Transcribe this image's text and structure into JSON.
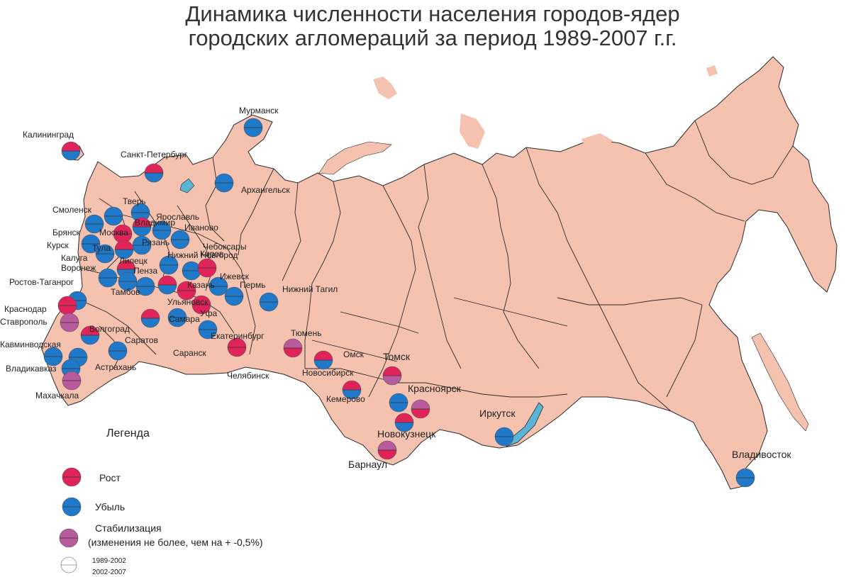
{
  "title": {
    "line1": "Динамика численности населения городов-ядер",
    "line2": "городских агломераций за период 1989-2007 г.г."
  },
  "colors": {
    "land": "#f5c2b0",
    "border": "#2a2a2a",
    "growth": "#e0245a",
    "decline": "#1f78c8",
    "stable": "#b85a9c",
    "water": "#5ab4d6"
  },
  "legend": {
    "title": "Легенда",
    "items": [
      {
        "label": "Рост",
        "top": "growth",
        "bottom": "growth"
      },
      {
        "label": "Убыль",
        "top": "decline",
        "bottom": "decline"
      },
      {
        "label": "Стабилизация",
        "label2": "(изменения не более, чем на + -0,5%)",
        "top": "stable",
        "bottom": "stable"
      }
    ],
    "period_top": "1989-2002",
    "period_bottom": "2002-2007"
  },
  "cities": [
    {
      "name": "Мурманск",
      "top": "decline",
      "bottom": "decline"
    },
    {
      "name": "Калининград",
      "top": "growth",
      "bottom": "decline"
    },
    {
      "name": "Санкт-Петербург",
      "top": "growth",
      "bottom": "decline"
    },
    {
      "name": "Архангельск",
      "top": "decline",
      "bottom": "decline"
    },
    {
      "name": "Смоленск",
      "top": "decline",
      "bottom": "decline"
    },
    {
      "name": "Тверь",
      "top": "decline",
      "bottom": "decline"
    },
    {
      "name": "Ярославль",
      "top": "decline",
      "bottom": "decline"
    },
    {
      "name": "Владимир",
      "top": "growth",
      "bottom": "decline"
    },
    {
      "name": "Иваново",
      "top": "decline",
      "bottom": "decline"
    },
    {
      "name": "Брянск",
      "top": "decline",
      "bottom": "decline"
    },
    {
      "name": "Москва",
      "top": "growth",
      "bottom": "growth"
    },
    {
      "name": "Рязань",
      "top": "decline",
      "bottom": "decline"
    },
    {
      "name": "Курск",
      "top": "decline",
      "bottom": "decline"
    },
    {
      "name": "Тула",
      "top": "decline",
      "bottom": "decline"
    },
    {
      "name": "Калуга",
      "top": "growth",
      "bottom": "decline"
    },
    {
      "name": "Чебоксары",
      "top": "decline",
      "bottom": "decline"
    },
    {
      "name": "Киров",
      "top": "growth",
      "bottom": "growth"
    },
    {
      "name": "Нижний Новгород",
      "top": "decline",
      "bottom": "decline"
    },
    {
      "name": "Воронеж",
      "top": "decline",
      "bottom": "decline"
    },
    {
      "name": "Липецк",
      "top": "growth",
      "bottom": "decline"
    },
    {
      "name": "Пенза",
      "top": "decline",
      "bottom": "decline"
    },
    {
      "name": "Ижевск",
      "top": "decline",
      "bottom": "decline"
    },
    {
      "name": "Ростов-Таганрог",
      "top": "decline",
      "bottom": "decline"
    },
    {
      "name": "Тамбов",
      "top": "decline",
      "bottom": "decline"
    },
    {
      "name": "Казань",
      "top": "growth",
      "bottom": "growth"
    },
    {
      "name": "Пермь",
      "top": "decline",
      "bottom": "decline"
    },
    {
      "name": "Нижний Тагил",
      "top": "decline",
      "bottom": "decline"
    },
    {
      "name": "Ульяновск",
      "top": "growth",
      "bottom": "decline"
    },
    {
      "name": "Уфа",
      "top": "growth",
      "bottom": "growth"
    },
    {
      "name": "Краснодар",
      "top": "growth",
      "bottom": "growth"
    },
    {
      "name": "Ставрополь",
      "top": "stable",
      "bottom": "stable"
    },
    {
      "name": "Волгоград",
      "top": "growth",
      "bottom": "decline"
    },
    {
      "name": "Самара",
      "top": "decline",
      "bottom": "decline"
    },
    {
      "name": "Екатеринбург",
      "top": "decline",
      "bottom": "decline"
    },
    {
      "name": "Тюмень",
      "top": "growth",
      "bottom": "growth"
    },
    {
      "name": "Кавминводская",
      "top": "stable",
      "bottom": "growth"
    },
    {
      "name": "Саратов",
      "top": "decline",
      "bottom": "decline"
    },
    {
      "name": "Саранск",
      "top": "decline",
      "bottom": "decline"
    },
    {
      "name": "Челябинск",
      "top": "growth",
      "bottom": "decline"
    },
    {
      "name": "Омск",
      "top": "decline",
      "bottom": "decline"
    },
    {
      "name": "Томск",
      "top": "growth",
      "bottom": "decline"
    },
    {
      "name": "Владикавказ",
      "top": "growth",
      "bottom": "stable"
    },
    {
      "name": "Астрахань",
      "top": "decline",
      "bottom": "decline"
    },
    {
      "name": "Новосибирск",
      "top": "growth",
      "bottom": "decline"
    },
    {
      "name": "Махачкала",
      "top": "stable",
      "bottom": "stable"
    },
    {
      "name": "Кемерово",
      "top": "decline",
      "bottom": "decline"
    },
    {
      "name": "Красноярск",
      "top": "stable",
      "bottom": "growth"
    },
    {
      "name": "Новокузнецк",
      "top": "growth",
      "bottom": "decline"
    },
    {
      "name": "Иркутск",
      "top": "decline",
      "bottom": "decline"
    },
    {
      "name": "Барнаул",
      "top": "stable",
      "bottom": "growth"
    },
    {
      "name": "Владивосток",
      "top": "decline",
      "bottom": "decline"
    }
  ]
}
